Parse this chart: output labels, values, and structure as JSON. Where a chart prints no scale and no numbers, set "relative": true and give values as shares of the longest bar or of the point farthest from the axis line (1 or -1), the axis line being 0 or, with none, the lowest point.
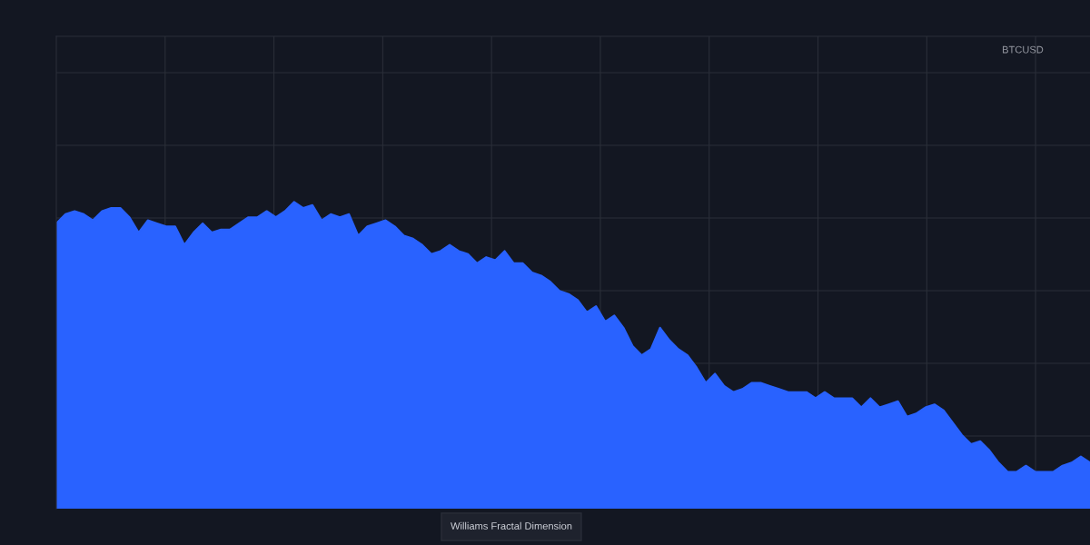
{
  "chart_data": {
    "type": "area",
    "relative": true,
    "grid": true,
    "tick_labels": false,
    "color": "#2962ff",
    "title": "Williams Fractal Dimension",
    "annotations": [
      "BTCUSD"
    ],
    "categories": [
      null,
      null,
      null,
      null,
      null,
      null,
      null,
      null,
      null,
      null,
      null,
      null,
      null,
      null,
      null,
      null,
      null,
      null,
      null,
      null,
      null,
      null,
      null,
      null,
      null,
      null,
      null,
      null,
      null,
      null,
      null,
      null,
      null,
      null,
      null,
      null,
      null,
      null,
      null,
      null,
      null,
      null,
      null,
      null,
      null,
      null,
      null,
      null,
      null,
      null,
      null,
      null,
      null,
      null,
      null,
      null,
      null,
      null,
      null,
      null,
      null,
      null,
      null,
      null,
      null,
      null,
      null,
      null,
      null,
      null,
      null,
      null,
      null,
      null,
      null,
      null,
      null,
      null,
      null,
      null,
      null,
      null,
      null,
      null,
      null,
      null,
      null,
      null,
      null,
      null,
      null,
      null,
      null,
      null,
      null,
      null,
      null,
      null,
      null,
      null,
      null,
      null,
      null,
      null,
      null,
      null,
      null,
      null,
      null,
      null,
      null,
      null,
      null,
      null
    ],
    "values": [
      0.93,
      0.96,
      0.97,
      0.96,
      0.94,
      0.97,
      0.98,
      0.98,
      0.95,
      0.9,
      0.94,
      0.93,
      0.92,
      0.92,
      0.86,
      0.9,
      0.93,
      0.9,
      0.91,
      0.91,
      0.93,
      0.95,
      0.95,
      0.97,
      0.95,
      0.97,
      1,
      0.98,
      0.99,
      0.94,
      0.96,
      0.95,
      0.96,
      0.89,
      0.92,
      0.93,
      0.94,
      0.92,
      0.89,
      0.88,
      0.86,
      0.83,
      0.84,
      0.86,
      0.84,
      0.83,
      0.8,
      0.82,
      0.81,
      0.84,
      0.8,
      0.8,
      0.77,
      0.76,
      0.74,
      0.71,
      0.7,
      0.68,
      0.64,
      0.66,
      0.61,
      0.63,
      0.59,
      0.53,
      0.5,
      0.52,
      0.59,
      0.55,
      0.52,
      0.5,
      0.46,
      0.41,
      0.44,
      0.4,
      0.38,
      0.39,
      0.41,
      0.41,
      0.4,
      0.39,
      0.38,
      0.38,
      0.38,
      0.36,
      0.38,
      0.36,
      0.36,
      0.36,
      0.33,
      0.36,
      0.33,
      0.34,
      0.35,
      0.3,
      0.31,
      0.33,
      0.34,
      0.32,
      0.28,
      0.24,
      0.21,
      0.22,
      0.19,
      0.15,
      0.12,
      0.12,
      0.14,
      0.12,
      0.12,
      0.12,
      0.14,
      0.15,
      0.17,
      0.15
    ]
  }
}
